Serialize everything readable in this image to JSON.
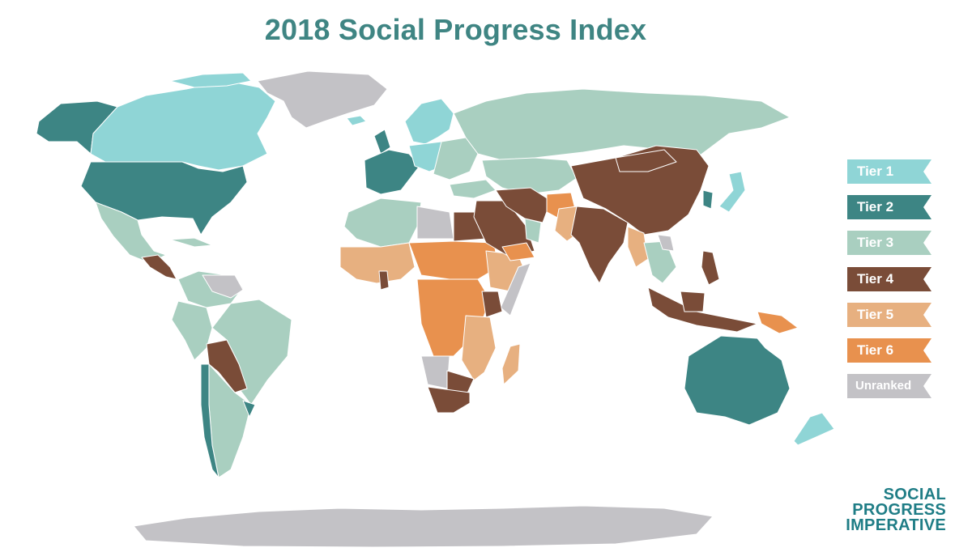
{
  "title": "2018 Social Progress Index",
  "colors": {
    "tier1": "#8fd5d6",
    "tier2": "#3d8584",
    "tier3": "#a9cfc0",
    "tier4": "#7a4c38",
    "tier5": "#e7b080",
    "tier6": "#e8914e",
    "unranked": "#c3c2c6",
    "title": "#3f8583",
    "logo": "#1f7d86"
  },
  "legend": [
    {
      "label": "Tier 1",
      "key": "tier1"
    },
    {
      "label": "Tier 2",
      "key": "tier2"
    },
    {
      "label": "Tier 3",
      "key": "tier3"
    },
    {
      "label": "Tier 4",
      "key": "tier4"
    },
    {
      "label": "Tier 5",
      "key": "tier5"
    },
    {
      "label": "Tier 6",
      "key": "tier6"
    },
    {
      "label": "Unranked",
      "key": "unranked"
    }
  ],
  "logo": {
    "line1": "SOCIAL",
    "line2": "PROGRESS",
    "line3": "IMPERATIVE"
  }
}
